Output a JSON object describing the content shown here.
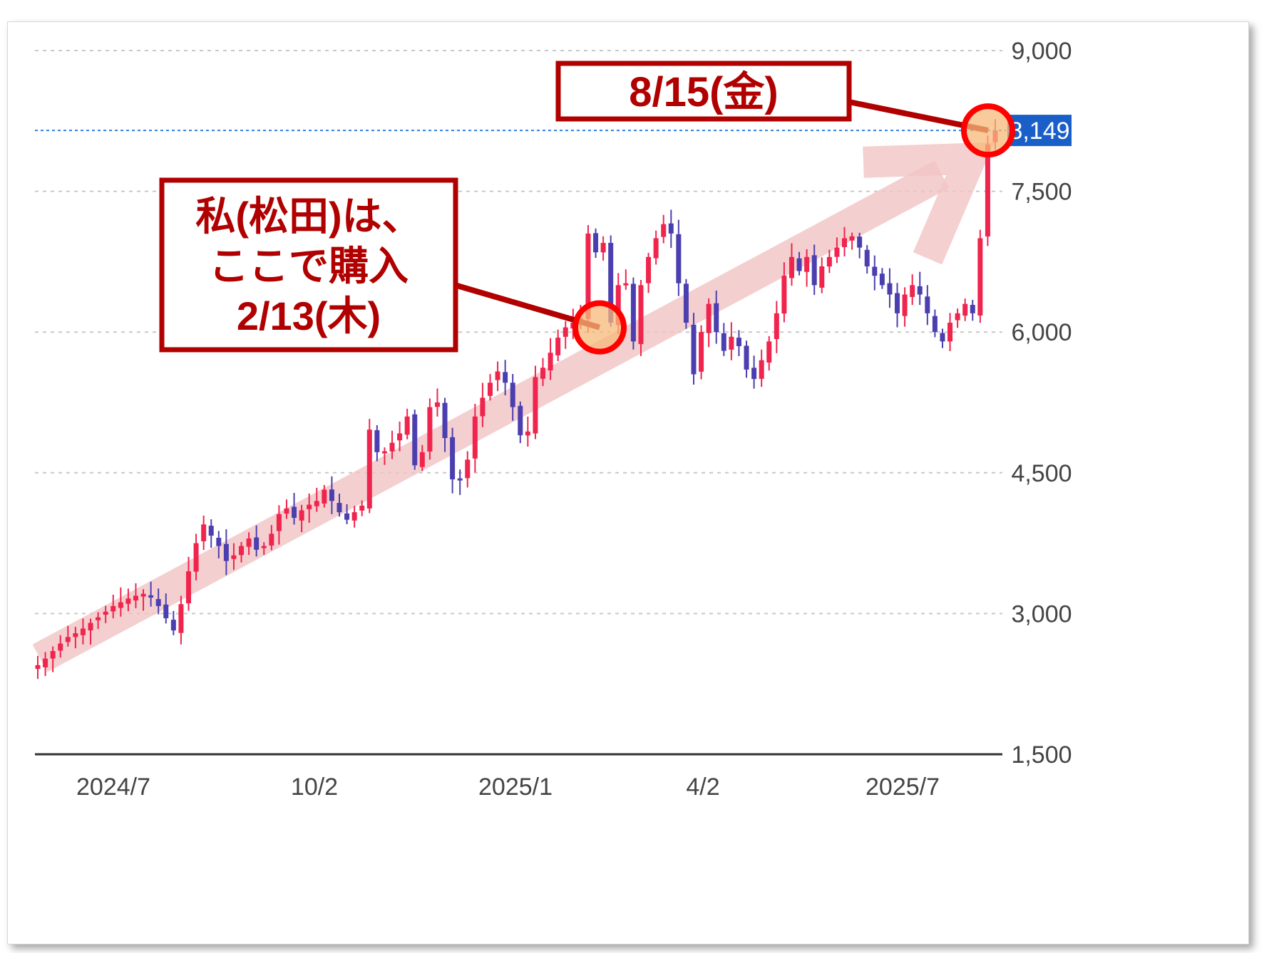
{
  "chart_data": {
    "type": "candlestick",
    "y_ticks": [
      "9,000",
      "7,500",
      "6,000",
      "4,500",
      "3,000",
      "1,500"
    ],
    "y_tick_values": [
      9000,
      7500,
      6000,
      4500,
      3000,
      1500
    ],
    "x_ticks": [
      "2024/7",
      "10/2",
      "2025/1",
      "4/2",
      "2025/7"
    ],
    "ylim": [
      1500,
      9000
    ],
    "grid": true,
    "current_price": {
      "value": 8149,
      "label": "8,149"
    },
    "colors": {
      "up": "#f0244d",
      "down": "#4b3fb0",
      "price_line": "#2f7fe0",
      "price_label": "#1a5fc8",
      "callout": "#b00000",
      "arrow": "#f2c4c4",
      "marker_fill": "#f7b97a",
      "marker_ring": "#ff0000"
    },
    "trend_arrow": {
      "from_value": 2600,
      "to_value": 8000
    },
    "close_series": [
      2450,
      2520,
      2600,
      2680,
      2750,
      2790,
      2840,
      2900,
      2960,
      3020,
      3080,
      3120,
      3160,
      3190,
      3210,
      3170,
      3080,
      2950,
      2820,
      3100,
      3450,
      3750,
      3950,
      3830,
      3720,
      3560,
      3620,
      3720,
      3800,
      3680,
      3720,
      3850,
      4060,
      4120,
      4020,
      4100,
      4160,
      4200,
      4320,
      4200,
      4080,
      4000,
      4080,
      4150,
      4960,
      4720,
      4730,
      4820,
      4920,
      5100,
      4580,
      4720,
      5200,
      5250,
      4870,
      4430,
      4420,
      4640,
      5100,
      5300,
      5460,
      5580,
      5460,
      5200,
      4900,
      4940,
      5520,
      5620,
      5780,
      5940,
      6050,
      6100,
      6150,
      7050,
      6850,
      6950,
      6100,
      6500,
      6520,
      5900,
      6500,
      6800,
      7000,
      7150,
      7050,
      6520,
      6100,
      5550,
      6000,
      6300,
      6000,
      5800,
      5950,
      5850,
      5600,
      5500,
      5700,
      5900,
      6200,
      6600,
      6800,
      6650,
      6800,
      6500,
      6700,
      6800,
      6900,
      7000,
      7020,
      6900,
      6700,
      6600,
      6500,
      6400,
      6200,
      6400,
      6500,
      6400,
      6200,
      6000,
      5900,
      6100,
      6200,
      6300,
      6200,
      7000,
      8000,
      8149
    ]
  },
  "annotations": {
    "sell": {
      "label": "8/15(金)"
    },
    "buy": {
      "line1": "私(松田)は、",
      "line2": "ここで購入",
      "line3": "2/13(木)"
    }
  }
}
